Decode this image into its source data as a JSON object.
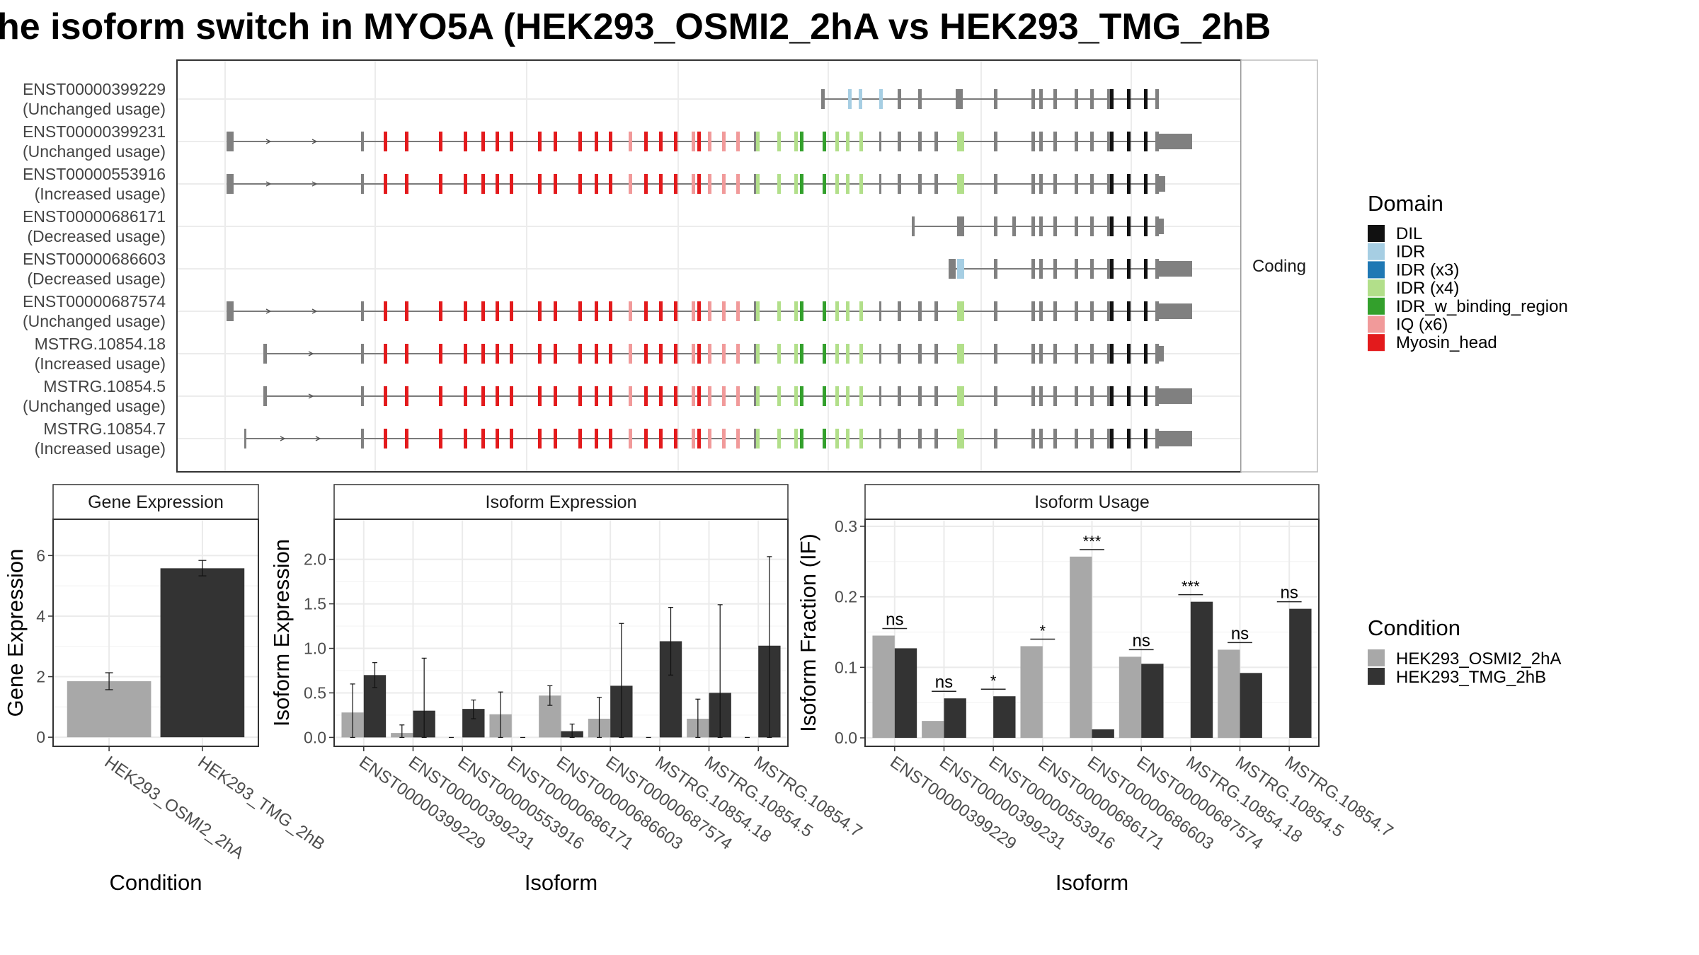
{
  "title": "he isoform switch in MYO5A (HEK293_OSMI2_2hA vs HEK293_TMG_2hB",
  "colors": {
    "cond1": "#a8a8a8",
    "cond2": "#333333",
    "domain": {
      "DIL": "#111111",
      "IDR": "#a6cee3",
      "IDR (x3)": "#1f78b4",
      "IDR (x4)": "#b2df8a",
      "IDR_w_binding_region": "#33a02c",
      "IQ (x6)": "#f19a9a",
      "Myosin_head": "#e31a1c",
      "none": "#808080"
    }
  },
  "structure": {
    "strip_label": "Coding",
    "isoforms": [
      {
        "id": "ENST00000399229",
        "status": "(Unchanged usage)"
      },
      {
        "id": "ENST00000399231",
        "status": "(Unchanged usage)"
      },
      {
        "id": "ENST00000553916",
        "status": "(Increased usage)"
      },
      {
        "id": "ENST00000686171",
        "status": "(Decreased usage)"
      },
      {
        "id": "ENST00000686603",
        "status": "(Decreased usage)"
      },
      {
        "id": "ENST00000687574",
        "status": "(Unchanged usage)"
      },
      {
        "id": "MSTRG.10854.18",
        "status": "(Increased usage)"
      },
      {
        "id": "MSTRG.10854.5",
        "status": "(Unchanged usage)"
      },
      {
        "id": "MSTRG.10854.7",
        "status": "(Increased usage)"
      }
    ],
    "legend_title": "Domain",
    "legend": [
      "DIL",
      "IDR",
      "IDR (x3)",
      "IDR (x4)",
      "IDR_w_binding_region",
      "IQ (x6)",
      "Myosin_head"
    ]
  },
  "condition_legend": {
    "title": "Condition",
    "items": [
      "HEK293_OSMI2_2hA",
      "HEK293_TMG_2hB"
    ]
  },
  "chart_data": [
    {
      "type": "bar",
      "title": "Gene Expression",
      "xlabel": "Condition",
      "ylabel": "Gene Expression",
      "categories": [
        "HEK293_OSMI2_2hA",
        "HEK293_TMG_2hB"
      ],
      "values": [
        1.85,
        5.58
      ],
      "error": [
        [
          1.57,
          2.13
        ],
        [
          5.33,
          5.84
        ]
      ],
      "ylim": [
        -0.3,
        7.2
      ],
      "yticks": [
        0,
        2,
        4,
        6
      ],
      "grid": true
    },
    {
      "type": "bar",
      "title": "Isoform Expression",
      "xlabel": "Isoform",
      "ylabel": "Isoform Expression",
      "categories": [
        "ENST00000399229",
        "ENST00000399231",
        "ENST00000553916",
        "ENST00000686171",
        "ENST00000686603",
        "ENST00000687574",
        "MSTRG.10854.18",
        "MSTRG.10854.5",
        "MSTRG.10854.7"
      ],
      "series": [
        {
          "name": "HEK293_OSMI2_2hA",
          "values": [
            0.28,
            0.05,
            0.0,
            0.26,
            0.47,
            0.21,
            0.0,
            0.21,
            0.0
          ],
          "error": [
            [
              0.0,
              0.6
            ],
            [
              0.0,
              0.14
            ],
            [
              0.0,
              0.0
            ],
            [
              0.0,
              0.51
            ],
            [
              0.36,
              0.58
            ],
            [
              0.0,
              0.45
            ],
            [
              0.0,
              0.0
            ],
            [
              0.0,
              0.43
            ],
            [
              0.0,
              0.0
            ]
          ]
        },
        {
          "name": "HEK293_TMG_2hB",
          "values": [
            0.7,
            0.3,
            0.32,
            0.0,
            0.07,
            0.58,
            1.08,
            0.5,
            1.03
          ],
          "error": [
            [
              0.56,
              0.84
            ],
            [
              0.0,
              0.89
            ],
            [
              0.21,
              0.42
            ],
            [
              0.0,
              0.0
            ],
            [
              0.0,
              0.15
            ],
            [
              0.0,
              1.28
            ],
            [
              0.7,
              1.46
            ],
            [
              0.0,
              1.49
            ],
            [
              0.0,
              2.03
            ]
          ]
        }
      ],
      "ylim": [
        -0.1,
        2.45
      ],
      "yticks": [
        0.0,
        0.5,
        1.0,
        1.5,
        2.0
      ],
      "tick_labels": [
        "0.0",
        "0.5",
        "1.0",
        "1.5",
        "2.0"
      ],
      "grid": true
    },
    {
      "type": "bar",
      "title": "Isoform Usage",
      "xlabel": "Isoform",
      "ylabel": "Isoform Fraction (IF)",
      "categories": [
        "ENST00000399229",
        "ENST00000399231",
        "ENST00000553916",
        "ENST00000686171",
        "ENST00000686603",
        "ENST00000687574",
        "MSTRG.10854.18",
        "MSTRG.10854.5",
        "MSTRG.10854.7"
      ],
      "series": [
        {
          "name": "HEK293_OSMI2_2hA",
          "values": [
            0.145,
            0.024,
            0.0,
            0.13,
            0.257,
            0.115,
            0.0,
            0.125,
            0.0
          ]
        },
        {
          "name": "HEK293_TMG_2hB",
          "values": [
            0.127,
            0.056,
            0.059,
            0.0,
            0.012,
            0.105,
            0.193,
            0.092,
            0.183
          ]
        }
      ],
      "significance": [
        "ns",
        "ns",
        "*",
        "*",
        "***",
        "ns",
        "***",
        "ns",
        "ns"
      ],
      "ylim": [
        -0.012,
        0.31
      ],
      "yticks": [
        0.0,
        0.1,
        0.2,
        0.3
      ],
      "tick_labels": [
        "0.0",
        "0.1",
        "0.2",
        "0.3"
      ],
      "grid": true
    }
  ]
}
